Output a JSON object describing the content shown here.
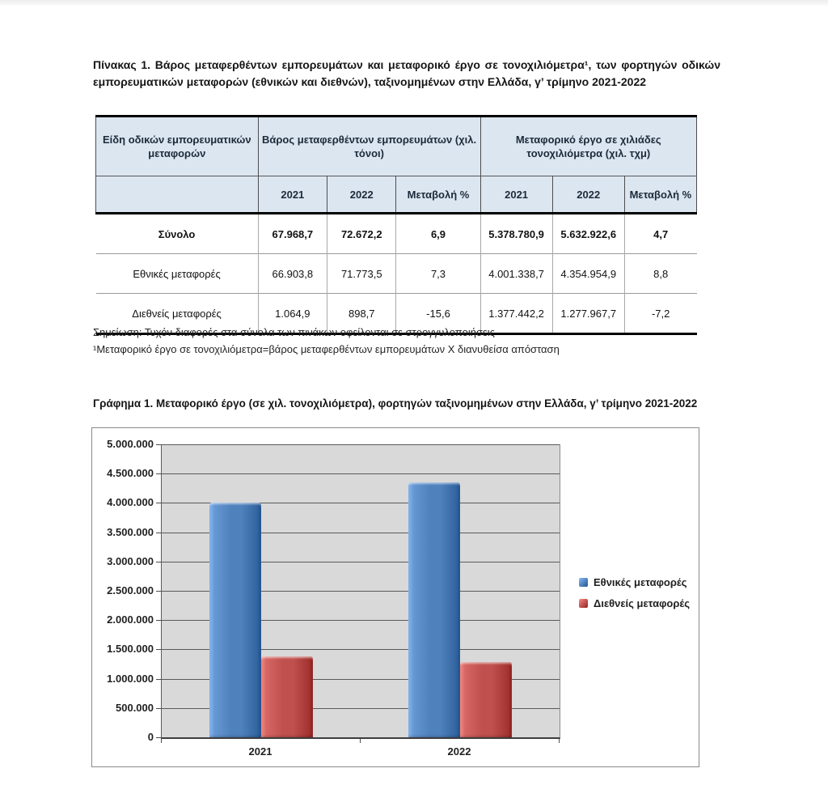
{
  "table_section": {
    "title": "Πίνακας 1. Βάρος μεταφερθέντων εμπορευμάτων και μεταφορικό έργο σε τονοχιλιόμετρα¹, των φορτηγών οδικών εμπορευματικών μεταφορών (εθνικών και διεθνών), ταξινομημένων στην Ελλάδα, γ’ τρίμηνο 2021-2022",
    "header": {
      "col1": "Είδη οδικών εμπορευματικών μεταφορών",
      "group1": "Βάρος μεταφερθέντων εμπορευμάτων (χιλ. τόνοι)",
      "group2": "Μεταφορικό έργο σε χιλιάδες τονοχιλιόμετρα (χιλ. τχμ)",
      "sub": [
        "2021",
        "2022",
        "Μεταβολή %",
        "2021",
        "2022",
        "Μεταβολή %"
      ]
    },
    "rows": [
      {
        "label": "Σύνολο",
        "cells": [
          "67.968,7",
          "72.672,2",
          "6,9",
          "5.378.780,9",
          "5.632.922,6",
          "4,7"
        ]
      },
      {
        "label": "Εθνικές μεταφορές",
        "cells": [
          "66.903,8",
          "71.773,5",
          "7,3",
          "4.001.338,7",
          "4.354.954,9",
          "8,8"
        ]
      },
      {
        "label": "Διεθνείς μεταφορές",
        "cells": [
          "1.064,9",
          "898,7",
          "-15,6",
          "1.377.442,2",
          "1.277.967,7",
          "-7,2"
        ]
      }
    ],
    "notes": [
      "Σημείωση: Τυχόν διαφορές στα σύνολα των πινάκων οφείλονται σε στρογγυλοποιήσεις",
      "¹Μεταφορικό έργο σε τονοχιλιόμετρα=βάρος μεταφερθέντων εμπορευμάτων Χ διανυθείσα απόσταση"
    ],
    "header_bg": "#dce6f1"
  },
  "chart_section": {
    "title": "Γράφημα 1. Μεταφορικό έργο (σε χιλ. τονοχιλιόμετρα), φορτηγών ταξινομημένων στην Ελλάδα, γ’ τρίμηνο 2021-2022"
  },
  "chart_data": {
    "type": "bar",
    "title": "Μεταφορικό έργο (σε χιλ. τονοχιλιόμετρα), φορτηγών ταξινομημένων στην Ελλάδα, γ’ τρίμηνο 2021-2022",
    "categories": [
      "2021",
      "2022"
    ],
    "series": [
      {
        "name": "Εθνικές μεταφορές",
        "color": "#4F81BD",
        "values": [
          4001338.7,
          4354954.9
        ]
      },
      {
        "name": "Διεθνείς μεταφορές",
        "color": "#C0504D",
        "values": [
          1377442.2,
          1277967.7
        ]
      }
    ],
    "ylim": [
      0,
      5000000
    ],
    "ytick_step": 500000,
    "ytick_labels": [
      "0",
      "500.000",
      "1.000.000",
      "1.500.000",
      "2.000.000",
      "2.500.000",
      "3.000.000",
      "3.500.000",
      "4.000.000",
      "4.500.000",
      "5.000.000"
    ],
    "grid": true,
    "legend_position": "right",
    "plot_bg": "#d9d9d9",
    "xlabel": "",
    "ylabel": ""
  }
}
